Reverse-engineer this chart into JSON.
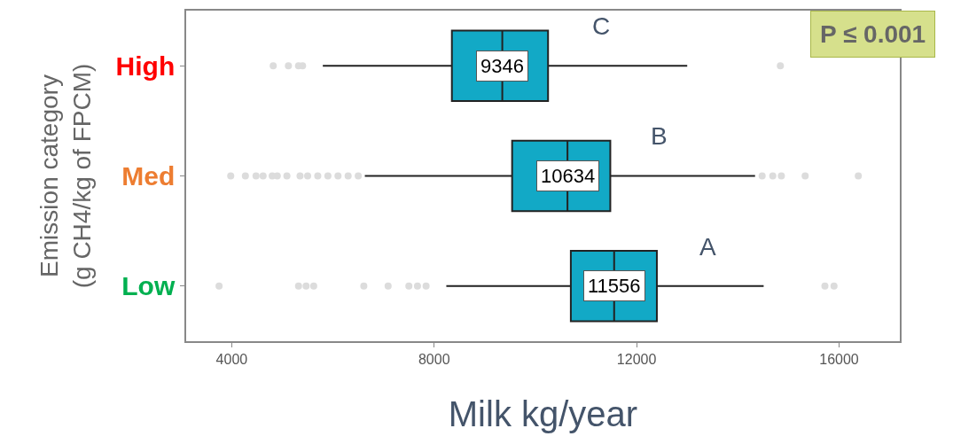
{
  "chart_data": {
    "type": "box",
    "orientation": "horizontal",
    "xlabel": "Milk kg/year",
    "ylabel": "Emission category\n(g CH4/kg of FPCM)",
    "categories": [
      "High",
      "Med",
      "Low"
    ],
    "color": "#12a9c6",
    "boxes": [
      {
        "low": 5800,
        "q1": 8350,
        "median": 9346,
        "q3": 10250,
        "high": 13000,
        "outliers": [
          4820,
          5120,
          5320,
          5400,
          14840
        ]
      },
      {
        "low": 6630,
        "q1": 9540,
        "median": 10634,
        "q3": 11480,
        "high": 14340,
        "outliers": [
          3980,
          4270,
          4480,
          4620,
          4800,
          4900,
          5090,
          5350,
          5500,
          5700,
          5900,
          6100,
          6300,
          6500,
          14480,
          14690,
          14860,
          15330,
          16380
        ]
      },
      {
        "low": 8240,
        "q1": 10700,
        "median": 11556,
        "q3": 12400,
        "high": 14510,
        "outliers": [
          3750,
          5320,
          5470,
          5620,
          6610,
          7090,
          7500,
          7670,
          7840,
          15720,
          15900
        ]
      }
    ],
    "xlim": [
      3100,
      17200
    ],
    "xticks": [
      4000,
      8000,
      12000,
      16000
    ],
    "annotations": [
      {
        "text": "9346",
        "x": 9346,
        "y": "High"
      },
      {
        "text": "10634",
        "x": 10634,
        "y": "Med"
      },
      {
        "text": "11556",
        "x": 11556,
        "y": "Low"
      },
      {
        "text": "C",
        "x": 11300,
        "y": "High"
      },
      {
        "text": "B",
        "x": 12450,
        "y": "Med"
      },
      {
        "text": "A",
        "x": 13400,
        "y": "Low"
      },
      "P ≤ 0.001"
    ]
  }
}
